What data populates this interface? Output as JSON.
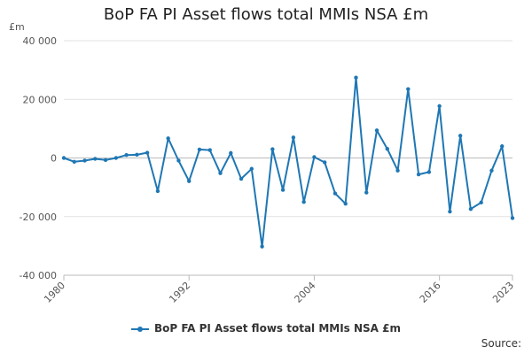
{
  "chart_data": {
    "type": "line",
    "title": "BoP FA PI Asset flows total MMIs NSA £m",
    "xlabel": "",
    "ylabel": "£m",
    "xlim": [
      1980,
      2023
    ],
    "ylim": [
      -40000,
      40000
    ],
    "x_ticks": [
      "1980",
      "1992",
      "2004",
      "2016",
      "2023"
    ],
    "y_ticks": [
      "40 000",
      "20 000",
      "0",
      "-20 000",
      "-40 000"
    ],
    "grid": true,
    "legend_position": "bottom",
    "series": [
      {
        "name": "BoP FA PI Asset flows total MMIs NSA £m",
        "color": "#1f77b4",
        "x": [
          1980,
          1981,
          1982,
          1983,
          1984,
          1985,
          1986,
          1987,
          1988,
          1989,
          1990,
          1991,
          1992,
          1993,
          1994,
          1995,
          1996,
          1997,
          1998,
          1999,
          2000,
          2001,
          2002,
          2003,
          2004,
          2005,
          2006,
          2007,
          2008,
          2009,
          2010,
          2011,
          2012,
          2013,
          2014,
          2015,
          2016,
          2017,
          2018,
          2019,
          2020,
          2021,
          2022,
          2023
        ],
        "values": [
          0,
          -1300,
          -900,
          -300,
          -700,
          0,
          1000,
          1100,
          1800,
          -11300,
          6700,
          -900,
          -7900,
          2900,
          2700,
          -5200,
          1700,
          -7100,
          -3700,
          -30200,
          3000,
          -10900,
          7000,
          -15000,
          300,
          -1500,
          -12100,
          -15600,
          27400,
          -11800,
          9400,
          3100,
          -4300,
          23500,
          -5600,
          -4800,
          17700,
          -18300,
          7600,
          -17400,
          -15200,
          -4300,
          4000,
          -20500
        ]
      }
    ]
  },
  "source_label": "Source:"
}
